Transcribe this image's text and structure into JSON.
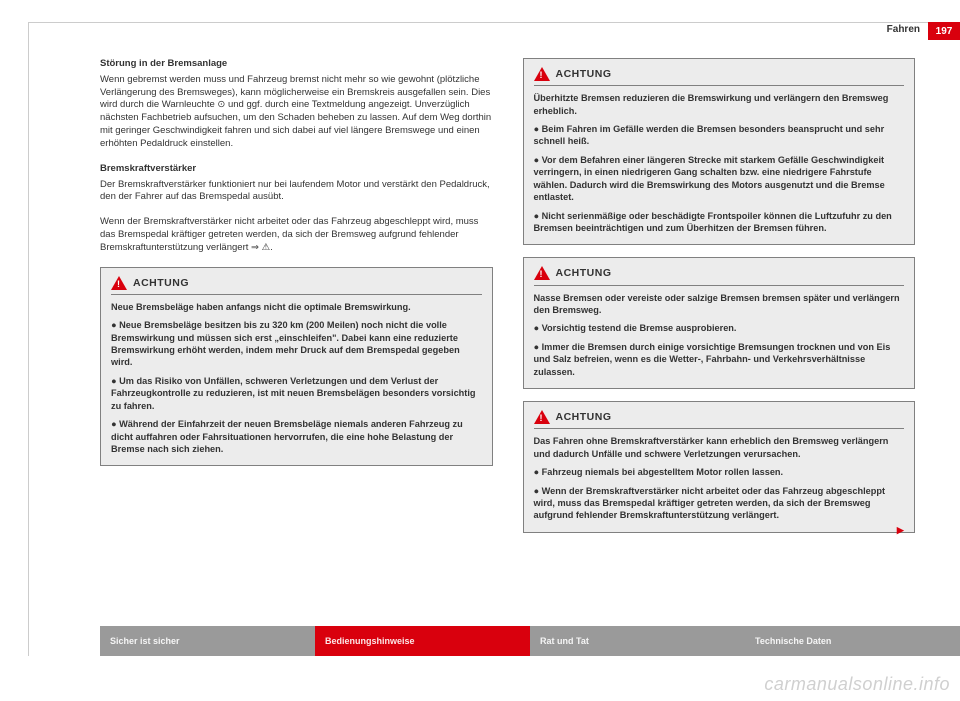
{
  "header": {
    "section": "Fahren",
    "page_number": "197"
  },
  "left_column": {
    "s1_title": "Störung in der Bremsanlage",
    "s1_body": "Wenn gebremst werden muss und Fahrzeug bremst nicht mehr so wie gewohnt (plötzliche Verlängerung des Bremsweges), kann möglicherweise ein Bremskreis ausgefallen sein. Dies wird durch die Warnleuchte ⊙ und ggf. durch eine Textmeldung angezeigt. Unverzüglich nächsten Fachbetrieb aufsuchen, um den Schaden beheben zu lassen. Auf dem Weg dorthin mit geringer Geschwindigkeit fahren und sich dabei auf viel längere Bremswege und einen erhöhten Pedaldruck einstellen.",
    "s2_title": "Bremskraftverstärker",
    "s2_body1": "Der Bremskraftverstärker funktioniert nur bei laufendem Motor und verstärkt den Pedaldruck, den der Fahrer auf das Bremspedal ausübt.",
    "s2_body2": "Wenn der Bremskraftverstärker nicht arbeitet oder das Fahrzeug abgeschleppt wird, muss das Bremspedal kräftiger getreten werden, da sich der Bremsweg aufgrund fehlender Bremskraftunterstützung verlängert ⇒ ⚠.",
    "warn1": {
      "label": "ACHTUNG",
      "intro": "Neue Bremsbeläge haben anfangs nicht die optimale Bremswirkung.",
      "b1": "Neue Bremsbeläge besitzen bis zu 320 km (200 Meilen) noch nicht die volle Bremswirkung und müssen sich erst „einschleifen\". Dabei kann eine reduzierte Bremswirkung erhöht werden, indem mehr Druck auf dem Bremspedal gegeben wird.",
      "b2": "Um das Risiko von Unfällen, schweren Verletzungen und dem Verlust der Fahrzeugkontrolle zu reduzieren, ist mit neuen Bremsbelägen besonders vorsichtig zu fahren.",
      "b3": "Während der Einfahrzeit der neuen Bremsbeläge niemals anderen Fahrzeug zu dicht auffahren oder Fahrsituationen hervorrufen, die eine hohe Belastung der Bremse nach sich ziehen."
    }
  },
  "right_column": {
    "warn1": {
      "label": "ACHTUNG",
      "intro": "Überhitzte Bremsen reduzieren die Bremswirkung und verlängern den Bremsweg erheblich.",
      "b1": "Beim Fahren im Gefälle werden die Bremsen besonders beansprucht und sehr schnell heiß.",
      "b2": "Vor dem Befahren einer längeren Strecke mit starkem Gefälle Geschwindigkeit verringern, in einen niedrigeren Gang schalten bzw. eine niedrigere Fahrstufe wählen. Dadurch wird die Bremswirkung des Motors ausgenutzt und die Bremse entlastet.",
      "b3": "Nicht serienmäßige oder beschädigte Frontspoiler können die Luftzufuhr zu den Bremsen beeinträchtigen und zum Überhitzen der Bremsen führen."
    },
    "warn2": {
      "label": "ACHTUNG",
      "intro": "Nasse Bremsen oder vereiste oder salzige Bremsen bremsen später und verlängern den Bremsweg.",
      "b1": "Vorsichtig testend die Bremse ausprobieren.",
      "b2": "Immer die Bremsen durch einige vorsichtige Bremsungen trocknen und von Eis und Salz befreien, wenn es die Wetter-, Fahrbahn- und Verkehrsverhältnisse zulassen."
    },
    "warn3": {
      "label": "ACHTUNG",
      "intro": "Das Fahren ohne Bremskraftverstärker kann erheblich den Bremsweg verlängern und dadurch Unfälle und schwere Verletzungen verursachen.",
      "b1": "Fahrzeug niemals bei abgestelltem Motor rollen lassen.",
      "b2": "Wenn der Bremskraftverstärker nicht arbeitet oder das Fahrzeug abgeschleppt wird, muss das Bremspedal kräftiger getreten werden, da sich der Bremsweg aufgrund fehlender Bremskraftunterstützung verlängert."
    }
  },
  "footer": {
    "tabs": [
      {
        "label": "Sicher ist sicher",
        "bg": "#9a9a9a"
      },
      {
        "label": "Bedienungshinweise",
        "bg": "#d9000d"
      },
      {
        "label": "Rat und Tat",
        "bg": "#9a9a9a"
      },
      {
        "label": "Technische Daten",
        "bg": "#9a9a9a"
      }
    ]
  },
  "watermark": "carmanualsonline.info",
  "colors": {
    "accent": "#d9000d",
    "box_bg": "#ececec",
    "box_border": "#808080"
  }
}
